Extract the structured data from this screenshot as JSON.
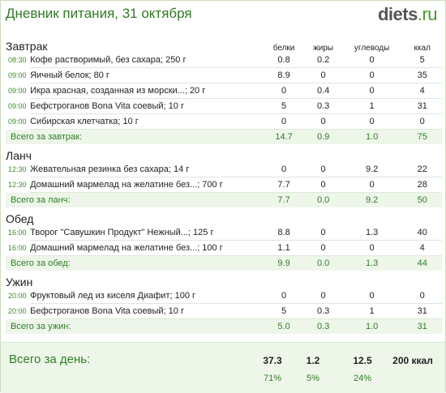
{
  "header": {
    "title": "Дневник питания, 31 октября",
    "logo_main": "diets",
    "logo_dot": ".",
    "logo_tld": "ru"
  },
  "columns": {
    "protein": "белки",
    "fat": "жиры",
    "carbs": "углеводы",
    "kcal": "ккал"
  },
  "meals": [
    {
      "name": "Завтрак",
      "items": [
        {
          "time": "08:30",
          "food": "Кофе растворимый, без сахара; 250 г",
          "protein": "0.8",
          "fat": "0.2",
          "carbs": "0",
          "kcal": "5"
        },
        {
          "time": "09:00",
          "food": "Яичный белок; 80 г",
          "protein": "8.9",
          "fat": "0",
          "carbs": "0",
          "kcal": "35"
        },
        {
          "time": "09:00",
          "food": "Икра красная, созданная из морски...; 20 г",
          "protein": "0",
          "fat": "0.4",
          "carbs": "0",
          "kcal": "4"
        },
        {
          "time": "09:00",
          "food": "Бефстроганов Bona Vita соевый; 10 г",
          "protein": "5",
          "fat": "0.3",
          "carbs": "1",
          "kcal": "31"
        },
        {
          "time": "09:00",
          "food": "Сибирская клетчатка; 10 г",
          "protein": "0",
          "fat": "0",
          "carbs": "0",
          "kcal": "0"
        }
      ],
      "total": {
        "label": "Всего за завтрак:",
        "protein": "14.7",
        "fat": "0.9",
        "carbs": "1.0",
        "kcal": "75"
      }
    },
    {
      "name": "Ланч",
      "items": [
        {
          "time": "12:30",
          "food": "Жевательная резинка без сахара; 14 г",
          "protein": "0",
          "fat": "0",
          "carbs": "9.2",
          "kcal": "22"
        },
        {
          "time": "12:30",
          "food": "Домашний мармелад на желатине без...; 700 г",
          "protein": "7.7",
          "fat": "0",
          "carbs": "0",
          "kcal": "28"
        }
      ],
      "total": {
        "label": "Всего за ланч:",
        "protein": "7.7",
        "fat": "0.0",
        "carbs": "9.2",
        "kcal": "50"
      }
    },
    {
      "name": "Обед",
      "items": [
        {
          "time": "16:00",
          "food": "Творог \"Савушкин Продукт\" Нежный...; 125 г",
          "protein": "8.8",
          "fat": "0",
          "carbs": "1.3",
          "kcal": "40"
        },
        {
          "time": "16:00",
          "food": "Домашний мармелад на желатине без...; 100 г",
          "protein": "1.1",
          "fat": "0",
          "carbs": "0",
          "kcal": "4"
        }
      ],
      "total": {
        "label": "Всего за обед:",
        "protein": "9.9",
        "fat": "0.0",
        "carbs": "1.3",
        "kcal": "44"
      }
    },
    {
      "name": "Ужин",
      "items": [
        {
          "time": "20:00",
          "food": "Фруктовый лед из киселя Диафит; 100 г",
          "protein": "0",
          "fat": "0",
          "carbs": "0",
          "kcal": "0"
        },
        {
          "time": "20:00",
          "food": "Бефстроганов Bona Vita соевый; 10 г",
          "protein": "5",
          "fat": "0.3",
          "carbs": "1",
          "kcal": "31"
        }
      ],
      "total": {
        "label": "Всего за ужин:",
        "protein": "5.0",
        "fat": "0.3",
        "carbs": "1.0",
        "kcal": "31"
      }
    }
  ],
  "day_total": {
    "label": "Всего за день:",
    "protein": "37.3",
    "fat": "1.2",
    "carbs": "12.5",
    "kcal": "200 ккал",
    "protein_pct": "71%",
    "fat_pct": "5%",
    "carbs_pct": "24%"
  },
  "colors": {
    "accent_green": "#2e7d23",
    "total_bg": "#eef6ea"
  }
}
